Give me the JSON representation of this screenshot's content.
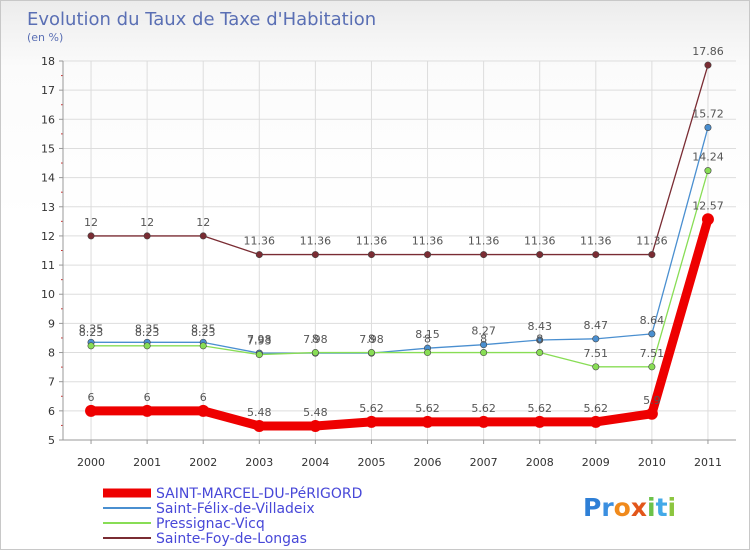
{
  "chart_data": {
    "type": "line",
    "title": "Evolution du Taux de Taxe d'Habitation",
    "subtitle": "(en %)",
    "xlabel": "",
    "ylabel": "(en %)",
    "ylim": [
      5,
      18
    ],
    "yticks": [
      "5",
      "6",
      "7",
      "8",
      "9",
      "10",
      "11",
      "12",
      "13",
      "14",
      "15",
      "16",
      "17",
      "18"
    ],
    "categories": [
      "2000",
      "2001",
      "2002",
      "2003",
      "2004",
      "2005",
      "2006",
      "2007",
      "2008",
      "2009",
      "2010",
      "2011"
    ],
    "grid": true,
    "legend_position": "bottom-left",
    "series": [
      {
        "name": "SAINT-MARCEL-DU-PéRIGORD",
        "color": "#ee0000",
        "bold": true,
        "values": [
          6,
          6,
          6,
          5.48,
          5.48,
          5.62,
          5.62,
          5.62,
          5.62,
          5.62,
          5.9,
          12.57
        ],
        "labels": [
          "6",
          "6",
          "6",
          "5.48",
          "5.48",
          "5.62",
          "5.62",
          "5.62",
          "5.62",
          "5.62",
          "5.9",
          "12.57"
        ]
      },
      {
        "name": "Saint-Félix-de-Villadeix",
        "color": "#4a8fd0",
        "bold": false,
        "values": [
          8.35,
          8.35,
          8.35,
          7.98,
          7.98,
          7.98,
          8.15,
          8.27,
          8.43,
          8.47,
          8.64,
          15.72
        ],
        "labels": [
          "8.35",
          "8.35",
          "8.35",
          "7.98",
          "7.98",
          "7.98",
          "8.15",
          "8.27",
          "8.43",
          "8.47",
          "8.64",
          "15.72"
        ]
      },
      {
        "name": "Pressignac-Vicq",
        "color": "#88dd55",
        "bold": false,
        "values": [
          8.23,
          8.23,
          8.23,
          7.93,
          8,
          8,
          8,
          8,
          8,
          7.51,
          7.51,
          14.24
        ],
        "labels": [
          "8.23",
          "8.23",
          "8.23",
          "7.93",
          "8",
          "8",
          "8",
          "8",
          "8",
          "7.51",
          "7.51",
          "14.24"
        ]
      },
      {
        "name": "Sainte-Foy-de-Longas",
        "color": "#7a2c33",
        "bold": false,
        "values": [
          12,
          12,
          12,
          11.36,
          11.36,
          11.36,
          11.36,
          11.36,
          11.36,
          11.36,
          11.36,
          17.86
        ],
        "labels": [
          "12",
          "12",
          "12",
          "11.36",
          "11.36",
          "11.36",
          "11.36",
          "11.36",
          "11.36",
          "11.36",
          "11.36",
          "17.86"
        ]
      }
    ]
  },
  "logo": {
    "text": "Proxiti",
    "letters": [
      "P",
      "r",
      "o",
      "x",
      "i",
      "t",
      "i"
    ],
    "colors": [
      "#2e7fd6",
      "#3b8fe0",
      "#f08a1c",
      "#e2561a",
      "#6cc24a",
      "#43a9e8",
      "#8cc63f"
    ]
  }
}
